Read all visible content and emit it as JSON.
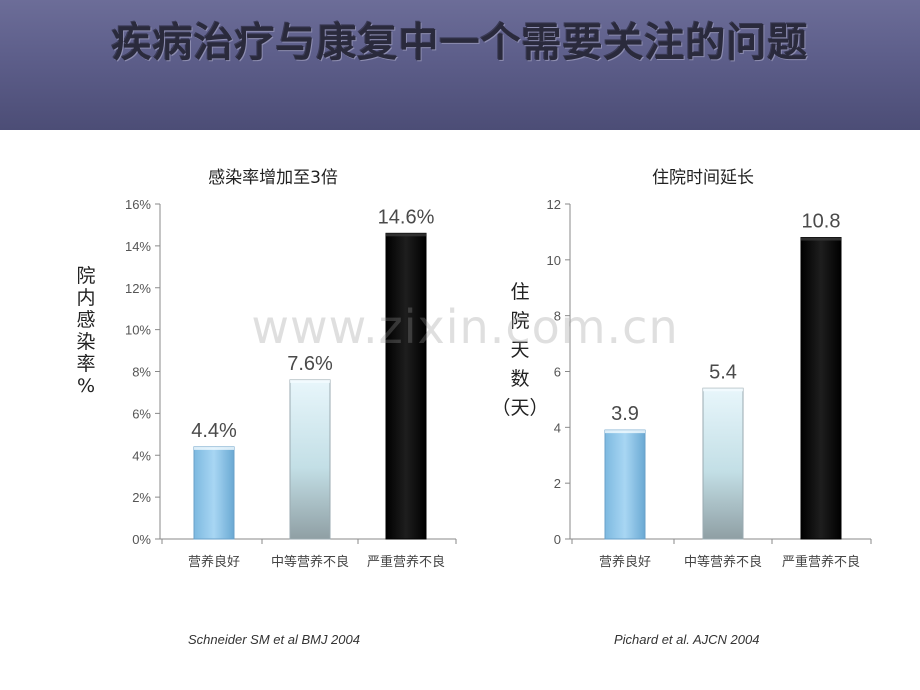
{
  "header": {
    "title": "疾病治疗与康复中一个需要关注的问题"
  },
  "watermark": "www.zixin.com.cn",
  "colors": {
    "header_bg": "#5d5e8a",
    "bar_good": "#8cc6ea",
    "bar_moderate": "#c9e2ea",
    "bar_severe": "#0a0a0a"
  },
  "chart_data": [
    {
      "type": "bar",
      "title": "感染率增加至3倍",
      "ylabel": "院内感染率%",
      "xlabel": "",
      "categories": [
        "营养良好",
        "中等营养不良",
        "严重营养不良"
      ],
      "values": [
        4.4,
        7.6,
        14.6
      ],
      "value_labels": [
        "4.4%",
        "7.6%",
        "14.6%"
      ],
      "ylim": [
        0,
        16
      ],
      "yticks": [
        0,
        2,
        4,
        6,
        8,
        10,
        12,
        14,
        16
      ],
      "ytick_labels": [
        "0%",
        "2%",
        "4%",
        "6%",
        "8%",
        "10%",
        "12%",
        "14%",
        "16%"
      ],
      "grid": false,
      "citation": "Schneider SM et al BMJ 2004"
    },
    {
      "type": "bar",
      "title": "住院时间延长",
      "ylabel": "住院天数（天）",
      "xlabel": "",
      "categories": [
        "营养良好",
        "中等营养不良",
        "严重营养不良"
      ],
      "values": [
        3.9,
        5.4,
        10.8
      ],
      "value_labels": [
        "3.9",
        "5.4",
        "10.8"
      ],
      "ylim": [
        0,
        12
      ],
      "yticks": [
        0,
        2,
        4,
        6,
        8,
        10,
        12
      ],
      "ytick_labels": [
        "0",
        "2",
        "4",
        "6",
        "8",
        "10",
        "12"
      ],
      "grid": false,
      "citation": "Pichard et al.  AJCN 2004"
    }
  ]
}
